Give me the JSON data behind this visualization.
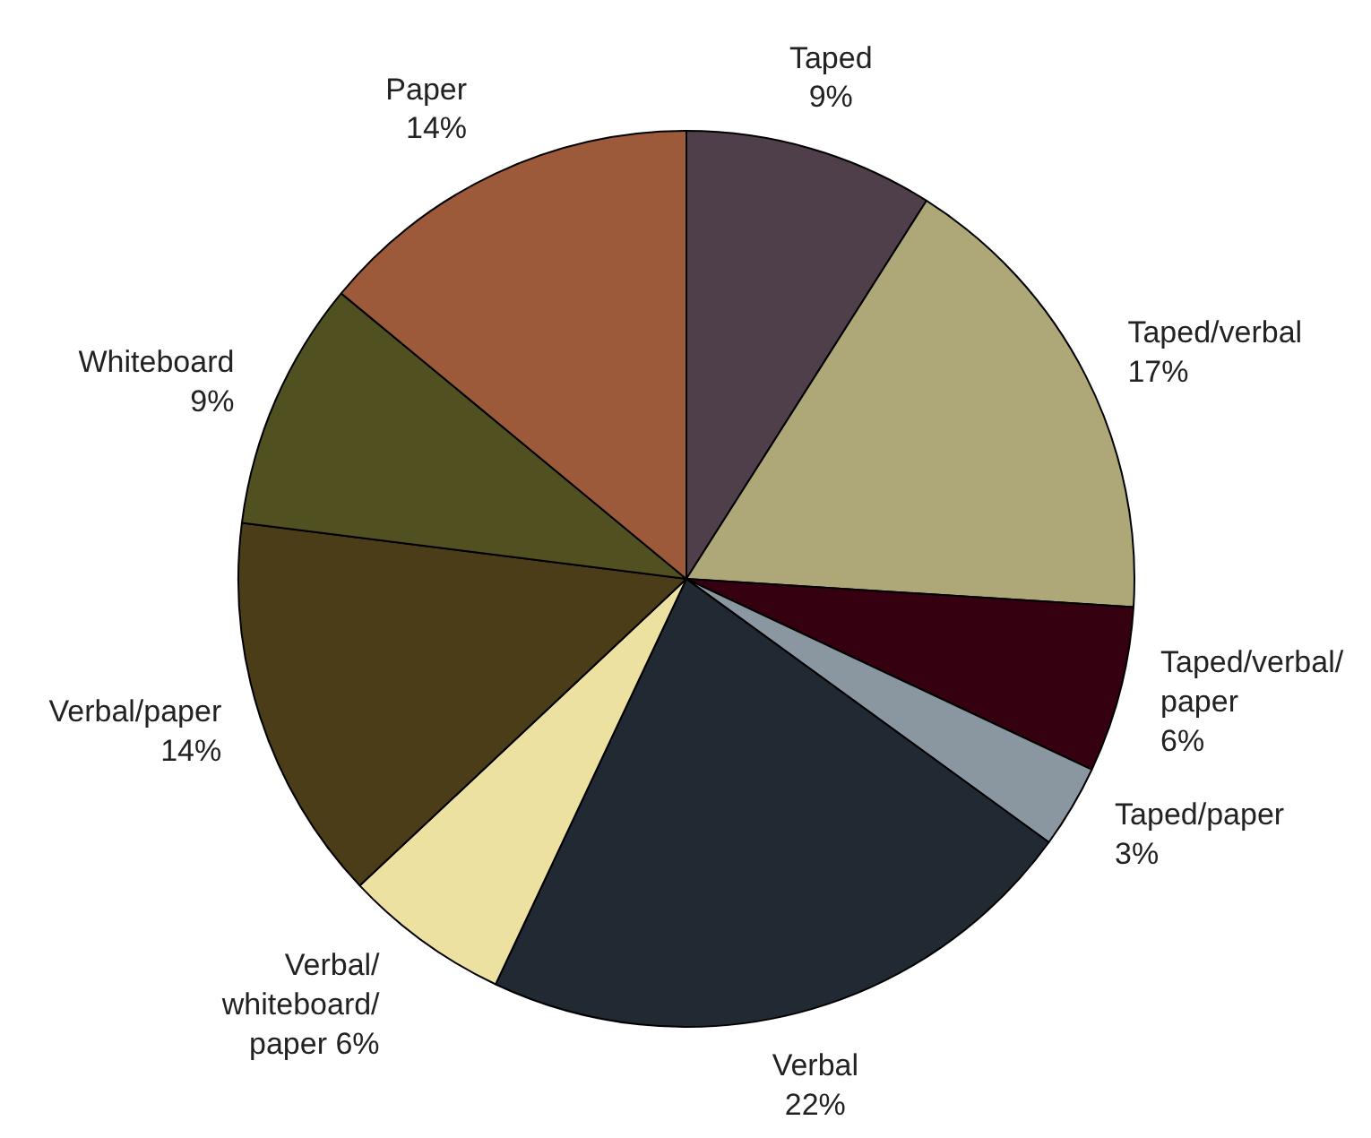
{
  "chart_data": {
    "type": "pie",
    "categories": [
      "Taped",
      "Taped/verbal",
      "Taped/verbal/paper",
      "Taped/paper",
      "Verbal",
      "Verbal/whiteboard/paper",
      "Verbal/paper",
      "Whiteboard",
      "Paper"
    ],
    "values": [
      9,
      17,
      6,
      3,
      22,
      6,
      14,
      9,
      14
    ],
    "colors": [
      "#4f3f4b",
      "#aea878",
      "#35000f",
      "#8a96a0",
      "#212a33",
      "#ede1a2",
      "#4a3d18",
      "#505020",
      "#9c5a3a"
    ],
    "value_labels": [
      "9%",
      "17%",
      "6%",
      "3%",
      "22%",
      "6%",
      "14%",
      "9%",
      "14%"
    ]
  }
}
